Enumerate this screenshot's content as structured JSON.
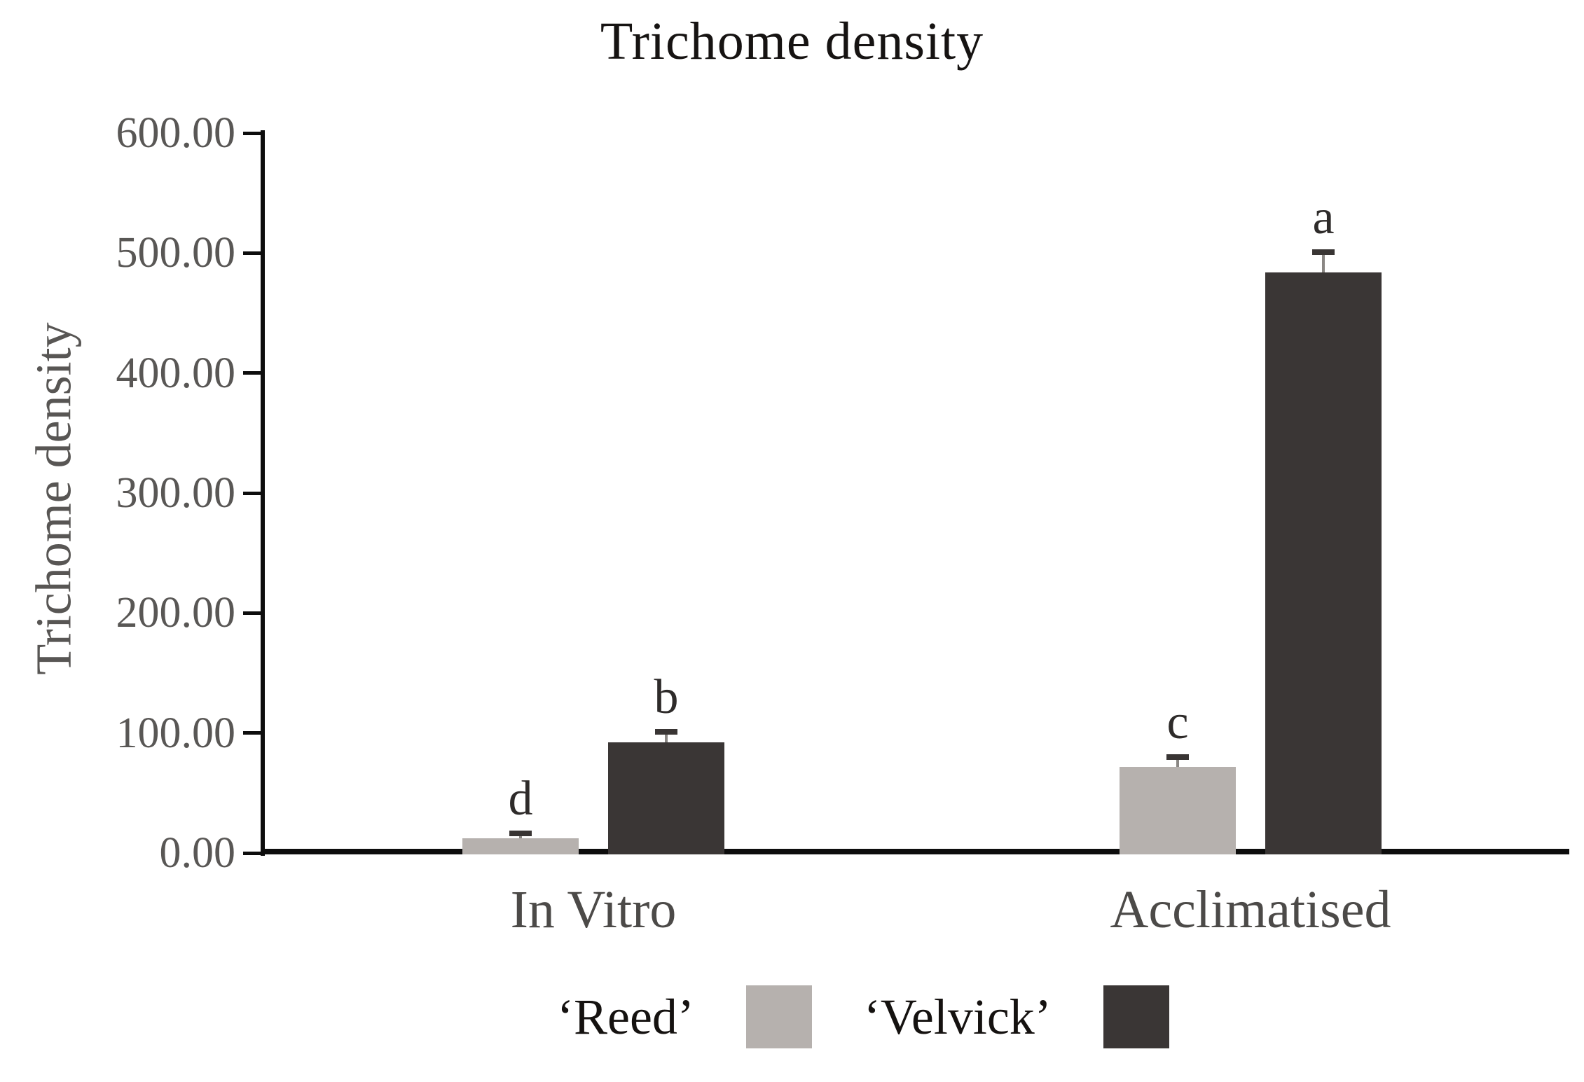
{
  "chart_data": {
    "type": "bar",
    "title": "Trichome density",
    "ylabel": "Trichome density",
    "xlabel": "",
    "categories": [
      "In Vitro",
      "Acclimatised"
    ],
    "series": [
      {
        "name": "‘Reed’",
        "color": "#b6b1ae",
        "values": [
          12.5,
          72
        ],
        "errors_plus": [
          4,
          8
        ],
        "sig_letters": [
          "d",
          "c"
        ]
      },
      {
        "name": "‘Velvick’",
        "color": "#3a3635",
        "values": [
          92,
          484
        ],
        "errors_plus": [
          9,
          17
        ],
        "sig_letters": [
          "b",
          "a"
        ]
      }
    ],
    "ylim": [
      0,
      600
    ],
    "ytick_step": 100,
    "ytick_labels": [
      "0.00",
      "100.00",
      "200.00",
      "300.00",
      "400.00",
      "500.00",
      "600.00"
    ],
    "grid": false,
    "error_bars": "upper-only",
    "legend_position": "bottom",
    "colors": {
      "axis": "#0d0d0d",
      "tick_text": "#595755",
      "error_cap": "#393534",
      "error_stem": "#8a8784"
    }
  }
}
